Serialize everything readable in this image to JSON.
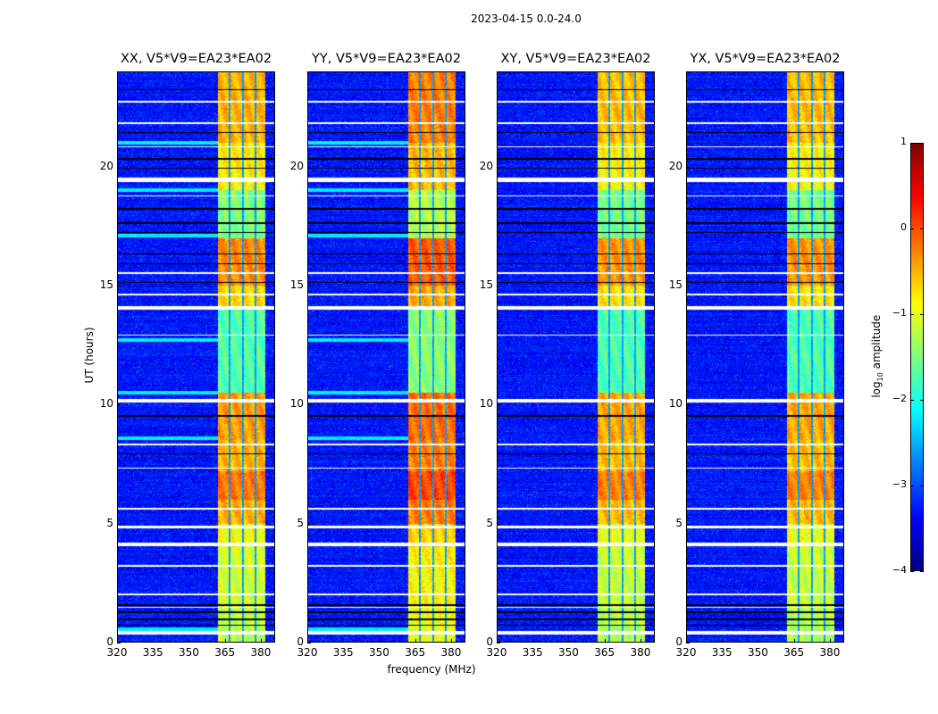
{
  "suptitle": "2023-04-15 0.0-24.0",
  "chart_data": {
    "type": "heatmap",
    "title": "2023-04-15 0.0-24.0",
    "xlabel": "frequency (MHz)",
    "ylabel": "UT (hours)",
    "xlim": [
      320,
      386
    ],
    "ylim": [
      0,
      24
    ],
    "xticks": [
      320,
      335,
      350,
      365,
      380
    ],
    "yticks": [
      0,
      5,
      10,
      15,
      20
    ],
    "panels": [
      {
        "title": "XX, V5*V9=EA23*EA02",
        "offset": 0.0
      },
      {
        "title": "YY, V5*V9=EA23*EA02",
        "offset": 0.25
      },
      {
        "title": "XY, V5*V9=EA23*EA02",
        "offset": -0.05
      },
      {
        "title": "YX, V5*V9=EA23*EA02",
        "offset": -0.05
      }
    ],
    "colorbar": {
      "label_main": "log",
      "label_sub": "10",
      "label_tail": " amplitude",
      "range": [
        -4,
        1
      ],
      "ticks": [
        1,
        0,
        -1,
        -2,
        -3,
        -4
      ],
      "tick_labels": [
        "1",
        "0",
        "−1",
        "−2",
        "−3",
        "−4"
      ],
      "colormap": "jet"
    },
    "background_log_amplitude": -3.3,
    "active_band_mhz": [
      362,
      382
    ],
    "band_gaps_mhz": [
      367,
      372.5,
      377.7
    ],
    "band_profile": [
      [
        0,
        1.5,
        -1.2
      ],
      [
        1.5,
        4,
        -1.1
      ],
      [
        4,
        5,
        -0.9
      ],
      [
        5,
        6,
        -0.5
      ],
      [
        6,
        7.2,
        -0.2
      ],
      [
        7.2,
        8.5,
        -0.5
      ],
      [
        8.5,
        10.5,
        -0.4
      ],
      [
        10.5,
        14,
        -1.7
      ],
      [
        14,
        15,
        -0.7
      ],
      [
        15,
        17,
        -0.3
      ],
      [
        17,
        19,
        -1.5
      ],
      [
        19,
        21,
        -0.8
      ],
      [
        21,
        24,
        -0.5
      ]
    ],
    "flagged_hours_white": [
      [
        0.35,
        0.5
      ],
      [
        1.45,
        1.5
      ],
      [
        2.0,
        2.05
      ],
      [
        3.2,
        3.25
      ],
      [
        4.05,
        4.2
      ],
      [
        4.8,
        4.9
      ],
      [
        5.6,
        5.65
      ],
      [
        7.3,
        7.35
      ],
      [
        8.3,
        8.35
      ],
      [
        10.1,
        10.25
      ],
      [
        12.9,
        12.95
      ],
      [
        14.0,
        14.15
      ],
      [
        14.6,
        14.65
      ],
      [
        15.5,
        15.55
      ],
      [
        18.75,
        18.8
      ],
      [
        19.35,
        19.55
      ],
      [
        20.8,
        20.85
      ],
      [
        21.8,
        21.85
      ],
      [
        22.7,
        22.75
      ]
    ],
    "flagged_hours_black": [
      [
        0.7,
        0.75
      ],
      [
        0.95,
        1.0
      ],
      [
        1.25,
        1.3
      ],
      [
        1.55,
        1.6
      ],
      [
        7.9,
        7.95
      ],
      [
        9.5,
        9.55
      ],
      [
        15.1,
        15.15
      ],
      [
        15.9,
        15.95
      ],
      [
        16.3,
        16.35
      ],
      [
        17.2,
        17.25
      ],
      [
        17.6,
        17.65
      ],
      [
        18.2,
        18.25
      ],
      [
        19.9,
        19.95
      ],
      [
        20.3,
        20.35
      ],
      [
        21.4,
        21.45
      ],
      [
        23.2,
        23.25
      ]
    ],
    "rfi_rows_hours": [
      0.55,
      8.6,
      10.5,
      12.7,
      17.1,
      19.0,
      21.0
    ]
  }
}
